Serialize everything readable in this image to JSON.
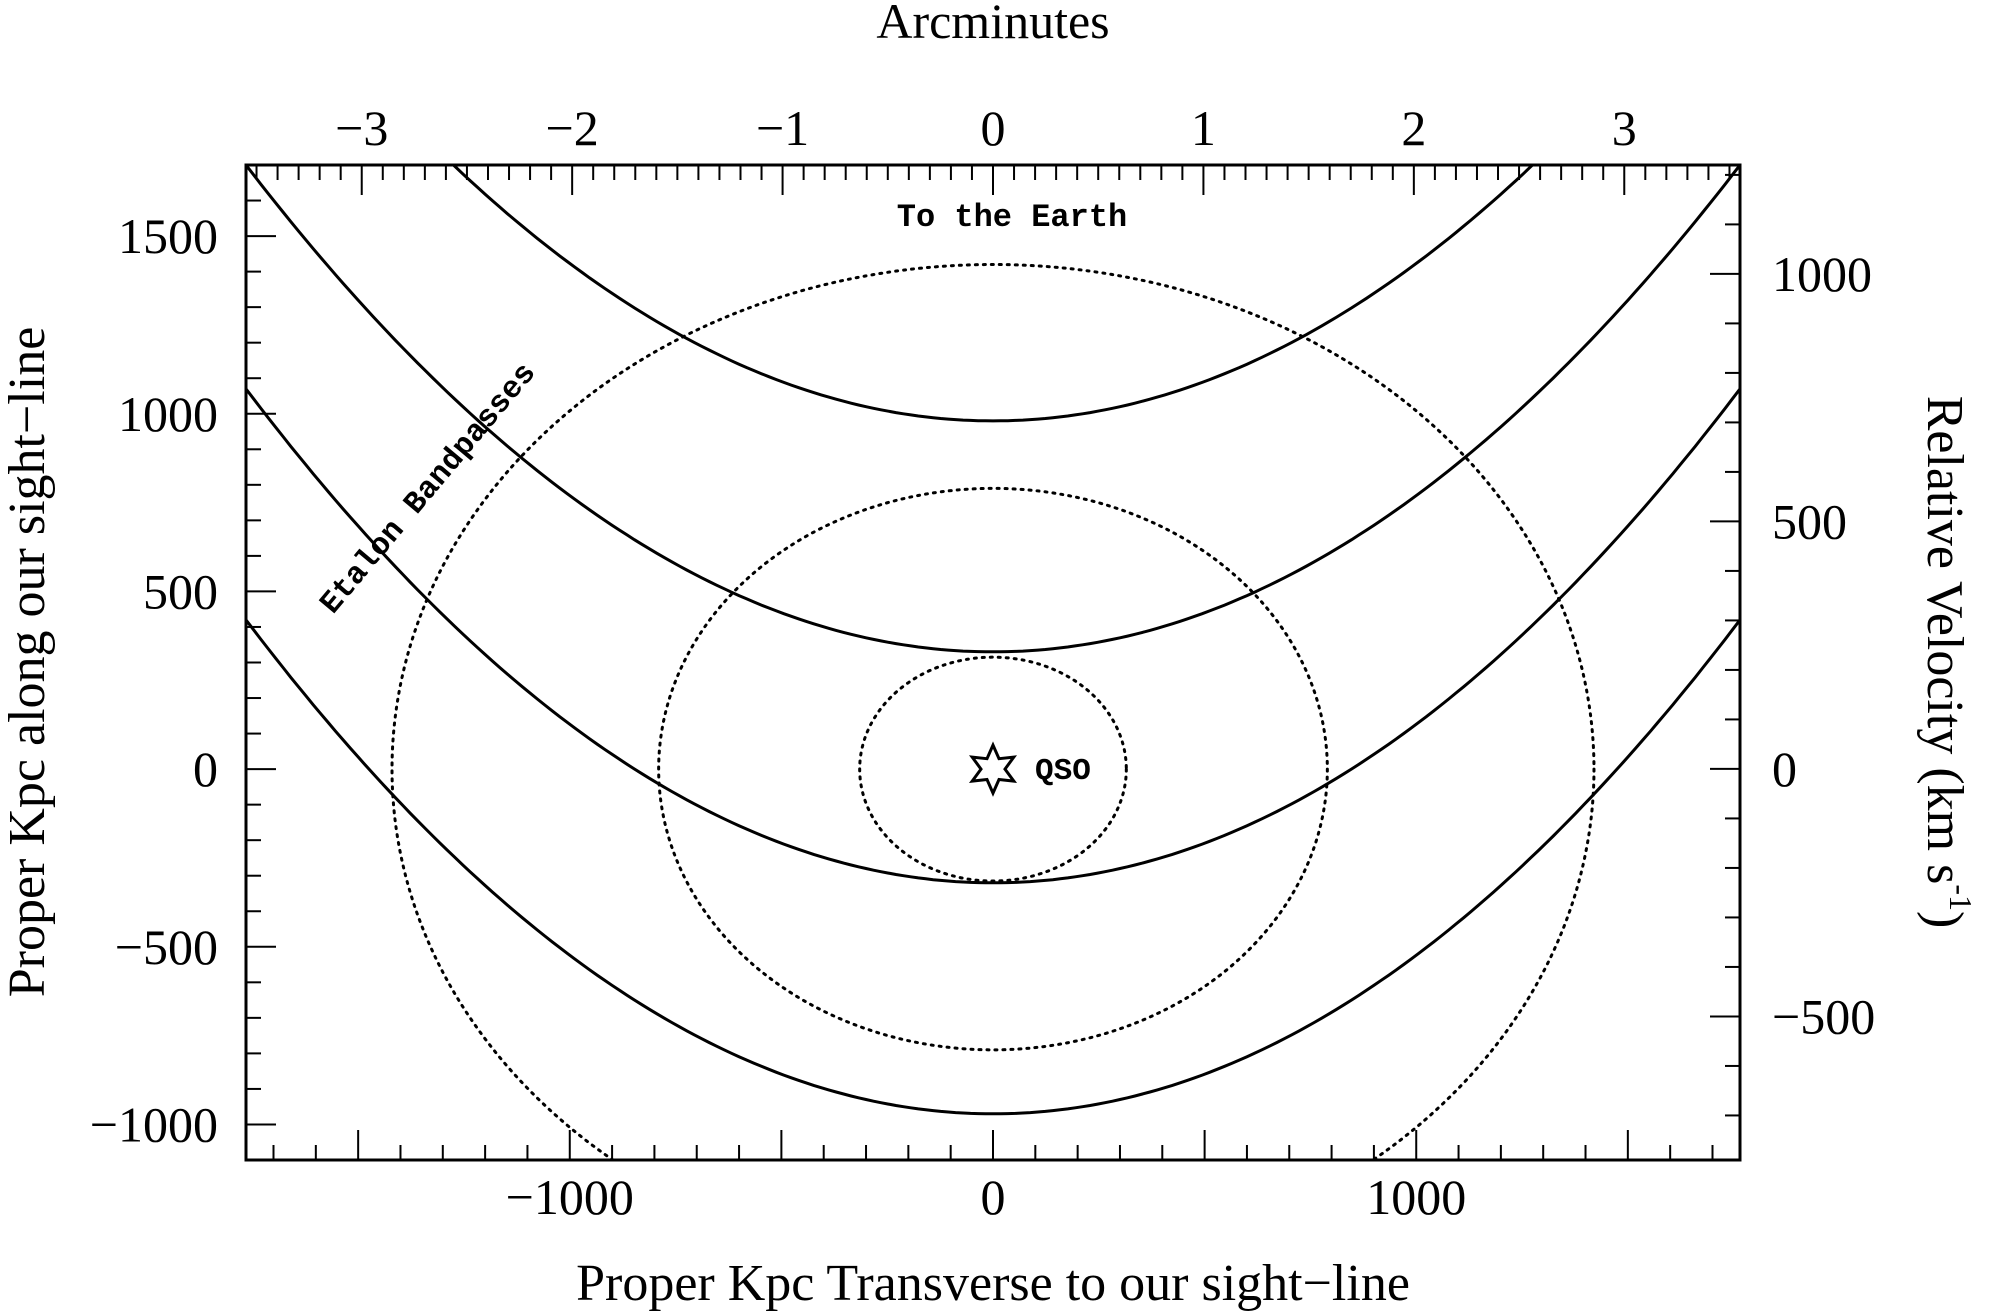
{
  "chart_data": {
    "type": "line",
    "top_axis_title": "Arcminutes",
    "xlabel": "Proper Kpc Transverse to our sight−line",
    "ylabel": "Proper Kpc along our sight−line",
    "right_ylabel_main": "Relative Velocity (km s",
    "right_ylabel_sup": "-1",
    "right_ylabel_close": ")",
    "xlim": [
      -1765,
      1765
    ],
    "ylim": [
      -1100,
      1700
    ],
    "top_xlim": [
      -3.55,
      3.55
    ],
    "right_ylim": [
      -790,
      1220
    ],
    "bottom_ticks": [
      {
        "value": -1000,
        "label": "−1000"
      },
      {
        "value": 0,
        "label": "0"
      },
      {
        "value": 1000,
        "label": "1000"
      }
    ],
    "left_ticks": [
      {
        "value": -1000,
        "label": "−1000"
      },
      {
        "value": -500,
        "label": "−500"
      },
      {
        "value": 0,
        "label": "0"
      },
      {
        "value": 500,
        "label": "500"
      },
      {
        "value": 1000,
        "label": "1000"
      },
      {
        "value": 1500,
        "label": "1500"
      }
    ],
    "top_ticks": [
      {
        "value": -3,
        "label": "−3"
      },
      {
        "value": -2,
        "label": "−2"
      },
      {
        "value": -1,
        "label": "−1"
      },
      {
        "value": 0,
        "label": "0"
      },
      {
        "value": 1,
        "label": "1"
      },
      {
        "value": 2,
        "label": "2"
      },
      {
        "value": 3,
        "label": "3"
      }
    ],
    "right_ticks": [
      {
        "value": -500,
        "label": "−500"
      },
      {
        "value": 0,
        "label": "0"
      },
      {
        "value": 500,
        "label": "500"
      },
      {
        "value": 1000,
        "label": "1000"
      }
    ],
    "series": [
      {
        "style": "solid",
        "vertex_y": -970,
        "y_at_left_edge": 420
      },
      {
        "style": "solid",
        "vertex_y": -320,
        "y_at_left_edge": 1070
      },
      {
        "style": "solid",
        "vertex_y": 330,
        "y_at_left_edge": 1700
      },
      {
        "style": "solid",
        "vertex_y": 980,
        "y_at_left_edge": 2360
      }
    ],
    "circles": [
      {
        "style": "dotted",
        "radius": 315
      },
      {
        "style": "dotted",
        "radius": 790
      },
      {
        "style": "dotted",
        "radius": 1420
      }
    ],
    "annotations": {
      "earth": "To the Earth",
      "etalon": "Etalon Bandpasses",
      "qso": "QSO"
    }
  }
}
